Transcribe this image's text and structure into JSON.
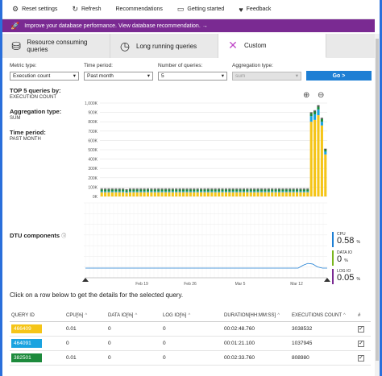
{
  "toolbar": {
    "reset": "Reset settings",
    "refresh": "Refresh",
    "recommendations": "Recommendations",
    "getting_started": "Getting started",
    "feedback": "Feedback"
  },
  "banner": {
    "text": "Improve your database performance. View database recommendation. →"
  },
  "tabs": [
    {
      "label": "Resource consuming queries"
    },
    {
      "label": "Long running queries"
    },
    {
      "label": "Custom"
    }
  ],
  "filters": {
    "metric_label": "Metric type:",
    "metric_value": "Execution count",
    "period_label": "Time period:",
    "period_value": "Past month",
    "queries_label": "Number of queries:",
    "queries_value": "5",
    "agg_label": "Aggregation type:",
    "agg_value": "sum",
    "go": "Go >"
  },
  "info": {
    "top_label": "TOP 5 queries by:",
    "top_value": "EXECUTION COUNT",
    "agg_label": "Aggregation type:",
    "agg_value": "SUM",
    "period_label": "Time period:",
    "period_value": "PAST MONTH"
  },
  "dtu": {
    "label": "DTU components",
    "info": "ⓘ"
  },
  "chart_data": {
    "type": "bar",
    "y_ticks": [
      "1,000K",
      "900K",
      "800K",
      "700K",
      "600K",
      "500K",
      "400K",
      "300K",
      "200K",
      "100K",
      "0K"
    ],
    "ylim": [
      0,
      1000
    ],
    "x_ticks": [
      "Feb 19",
      "Feb 26",
      "Mar 5",
      "Mar 12"
    ],
    "series_colors": [
      "#f5c518",
      "#1aa3e0",
      "#1d8a3c",
      "#4a4a4a",
      "#b0b0b0"
    ],
    "stacks": [
      [
        45,
        10,
        20,
        8,
        5
      ],
      [
        45,
        10,
        20,
        8,
        5
      ],
      [
        45,
        10,
        20,
        8,
        5
      ],
      [
        45,
        10,
        20,
        8,
        5
      ],
      [
        45,
        10,
        20,
        8,
        5
      ],
      [
        45,
        10,
        20,
        8,
        5
      ],
      [
        45,
        10,
        20,
        8,
        5
      ],
      [
        40,
        10,
        18,
        8,
        5
      ],
      [
        45,
        10,
        20,
        8,
        5
      ],
      [
        45,
        10,
        20,
        8,
        5
      ],
      [
        45,
        10,
        20,
        8,
        5
      ],
      [
        45,
        10,
        20,
        8,
        5
      ],
      [
        45,
        10,
        20,
        8,
        5
      ],
      [
        45,
        10,
        20,
        8,
        5
      ],
      [
        45,
        10,
        20,
        8,
        5
      ],
      [
        45,
        10,
        20,
        8,
        5
      ],
      [
        45,
        10,
        20,
        8,
        5
      ],
      [
        45,
        10,
        20,
        8,
        5
      ],
      [
        45,
        10,
        20,
        8,
        5
      ],
      [
        45,
        10,
        20,
        8,
        5
      ],
      [
        45,
        10,
        20,
        8,
        5
      ],
      [
        45,
        10,
        20,
        8,
        5
      ],
      [
        45,
        10,
        20,
        8,
        5
      ],
      [
        45,
        10,
        20,
        8,
        5
      ],
      [
        45,
        10,
        20,
        8,
        5
      ],
      [
        45,
        10,
        20,
        8,
        5
      ],
      [
        45,
        10,
        20,
        8,
        5
      ],
      [
        45,
        10,
        20,
        8,
        5
      ],
      [
        45,
        10,
        20,
        8,
        5
      ],
      [
        45,
        10,
        20,
        8,
        5
      ],
      [
        45,
        10,
        20,
        8,
        5
      ],
      [
        45,
        10,
        20,
        8,
        5
      ],
      [
        45,
        10,
        20,
        8,
        5
      ],
      [
        45,
        10,
        20,
        8,
        5
      ],
      [
        45,
        10,
        20,
        8,
        5
      ],
      [
        45,
        10,
        20,
        8,
        5
      ],
      [
        45,
        10,
        20,
        8,
        5
      ],
      [
        45,
        10,
        20,
        8,
        5
      ],
      [
        45,
        10,
        20,
        8,
        5
      ],
      [
        45,
        10,
        20,
        8,
        5
      ],
      [
        45,
        10,
        20,
        8,
        5
      ],
      [
        45,
        10,
        20,
        8,
        5
      ],
      [
        45,
        10,
        20,
        8,
        5
      ],
      [
        45,
        10,
        20,
        8,
        5
      ],
      [
        45,
        10,
        20,
        8,
        5
      ],
      [
        45,
        10,
        20,
        8,
        5
      ],
      [
        45,
        10,
        20,
        8,
        5
      ],
      [
        45,
        10,
        20,
        8,
        5
      ],
      [
        45,
        10,
        20,
        8,
        5
      ],
      [
        45,
        10,
        20,
        8,
        5
      ],
      [
        45,
        10,
        20,
        8,
        5
      ],
      [
        45,
        10,
        20,
        8,
        5
      ],
      [
        45,
        10,
        20,
        8,
        5
      ],
      [
        45,
        10,
        20,
        8,
        5
      ],
      [
        45,
        10,
        20,
        8,
        5
      ],
      [
        45,
        10,
        20,
        8,
        5
      ],
      [
        45,
        10,
        20,
        8,
        5
      ],
      [
        45,
        10,
        20,
        8,
        5
      ],
      [
        45,
        10,
        20,
        8,
        5
      ],
      [
        800,
        60,
        30,
        10,
        5
      ],
      [
        820,
        60,
        30,
        10,
        5
      ],
      [
        870,
        60,
        30,
        15,
        5
      ],
      [
        760,
        40,
        30,
        10,
        5
      ],
      [
        450,
        30,
        20,
        10,
        5
      ]
    ]
  },
  "dtu_legend": [
    {
      "name": "CPU",
      "value": "0.58",
      "unit": "%",
      "color": "#1e7fd4"
    },
    {
      "name": "DATA IO",
      "value": "0",
      "unit": "%",
      "color": "#7ab51d"
    },
    {
      "name": "LOG IO",
      "value": "0.05",
      "unit": "%",
      "color": "#7a2a92"
    }
  ],
  "click_msg": "Click on a row below to get the details for the selected query.",
  "table": {
    "headers": [
      "QUERY ID",
      "CPU[%]",
      "DATA IO[%]",
      "LOG IO[%]",
      "DURATION[HH:MM:SS]",
      "EXECUTIONS COUNT",
      "#"
    ],
    "rows": [
      {
        "id": "466409",
        "color": "#f5c518",
        "cpu": "0.01",
        "data_io": "0",
        "log_io": "0",
        "duration": "00:02:48.760",
        "executions": "3038532"
      },
      {
        "id": "464091",
        "color": "#1aa3e0",
        "cpu": "0",
        "data_io": "0",
        "log_io": "0",
        "duration": "00:01:21.100",
        "executions": "1037945"
      },
      {
        "id": "382501",
        "color": "#1d8a3c",
        "cpu": "0.01",
        "data_io": "0",
        "log_io": "0",
        "duration": "00:02:33.760",
        "executions": "808980"
      }
    ]
  }
}
